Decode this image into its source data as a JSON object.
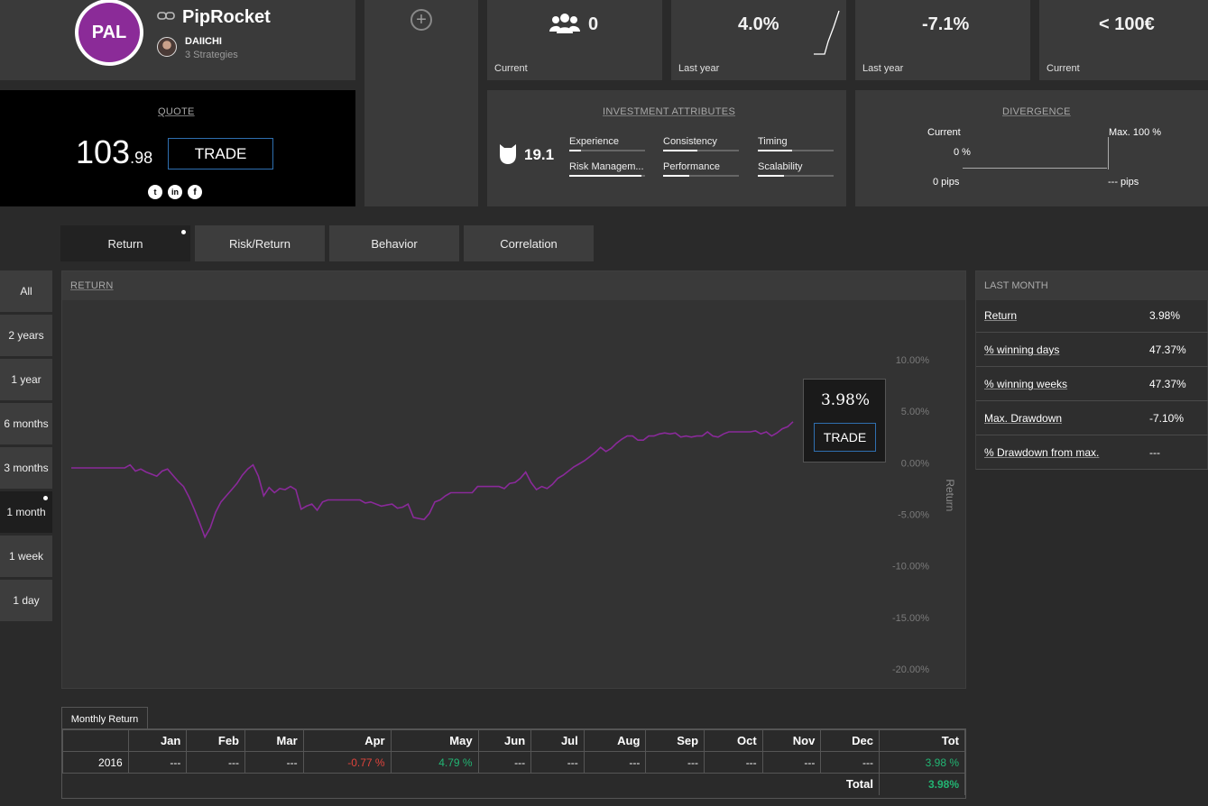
{
  "strategy": {
    "avatar_initials": "PAL",
    "name": "PipRocket",
    "author": "DAIICHI",
    "strategies_count": "3 Strategies"
  },
  "stats": [
    {
      "value": "0",
      "label": "Current",
      "icon": "users-icon"
    },
    {
      "value": "4.0%",
      "label": "Last year"
    },
    {
      "value": "-7.1%",
      "label": "Last year"
    },
    {
      "value": "< 100€",
      "label": "Current"
    }
  ],
  "quote": {
    "caption": "QUOTE",
    "price_int": "103",
    "price_dec": ".98",
    "trade_label": "TRADE",
    "social": [
      "twitter-icon",
      "linkedin-icon",
      "facebook-icon"
    ]
  },
  "investment": {
    "caption": "INVESTMENT ATTRIBUTES",
    "score": "19.1",
    "attributes": [
      {
        "label": "Experience",
        "level": 0.15
      },
      {
        "label": "Consistency",
        "level": 0.45
      },
      {
        "label": "Timing",
        "level": 0.45
      },
      {
        "label": "Risk Managem...",
        "level": 0.95
      },
      {
        "label": "Performance",
        "level": 0.35
      },
      {
        "label": "Scalability",
        "level": 0.35
      }
    ]
  },
  "divergence": {
    "caption": "DIVERGENCE",
    "current_label": "Current",
    "max_label": "Max. 100 %",
    "current_value": "0 %",
    "left_pips": "0 pips",
    "right_pips": "--- pips"
  },
  "tabs": [
    "Return",
    "Risk/Return",
    "Behavior",
    "Correlation"
  ],
  "periods": [
    "All",
    "2 years",
    "1 year",
    "6 months",
    "3 months",
    "1 month",
    "1 week",
    "1 day"
  ],
  "chart_panel": {
    "caption": "RETURN",
    "tooltip_value": "3.98%",
    "tooltip_trade": "TRADE"
  },
  "chart_data": {
    "type": "line",
    "ylabel": "Return",
    "ylim": [
      -20,
      10
    ],
    "yticks": [
      "10.00%",
      "5.00%",
      "0.00%",
      "-5.00%",
      "-10.00%",
      "-15.00%",
      "-20.00%"
    ],
    "tick_values": [
      10,
      5,
      0,
      -5,
      -10,
      -15,
      -20
    ],
    "series": [
      {
        "color": "#8a2a9a",
        "values": [
          -0.5,
          -0.5,
          -0.5,
          -0.5,
          -0.5,
          -0.5,
          -0.5,
          -0.5,
          -0.5,
          -0.5,
          -0.5,
          -0.2,
          -0.8,
          -0.6,
          -0.9,
          -1.1,
          -1.3,
          -0.8,
          -0.6,
          -1.2,
          -1.8,
          -2.3,
          -3.3,
          -4.5,
          -5.8,
          -7.2,
          -6.3,
          -4.8,
          -3.8,
          -3.2,
          -2.6,
          -2.0,
          -1.2,
          -0.6,
          -0.2,
          -1.3,
          -3.2,
          -2.4,
          -2.9,
          -2.5,
          -2.6,
          -2.3,
          -2.6,
          -4.5,
          -4.2,
          -4.0,
          -4.6,
          -3.8,
          -3.6,
          -3.6,
          -3.6,
          -3.6,
          -3.6,
          -3.6,
          -3.6,
          -3.9,
          -3.8,
          -4.0,
          -4.2,
          -4.1,
          -4.0,
          -4.4,
          -4.3,
          -4.0,
          -5.3,
          -5.4,
          -5.5,
          -4.9,
          -3.8,
          -3.6,
          -3.2,
          -2.9,
          -2.9,
          -2.9,
          -2.9,
          -2.9,
          -2.3,
          -2.3,
          -2.3,
          -2.3,
          -2.3,
          -2.5,
          -2.0,
          -1.9,
          -1.5,
          -0.9,
          -1.9,
          -2.6,
          -2.3,
          -2.5,
          -2.1,
          -1.5,
          -1.2,
          -0.8,
          -0.4,
          -0.1,
          0.2,
          0.6,
          1.0,
          1.5,
          1.1,
          1.4,
          1.9,
          2.3,
          2.6,
          2.6,
          2.2,
          2.2,
          2.6,
          2.6,
          2.8,
          2.9,
          2.8,
          2.9,
          2.5,
          2.6,
          2.5,
          2.6,
          2.6,
          3.0,
          2.6,
          2.5,
          2.8,
          3.0,
          3.0,
          3.0,
          3.0,
          3.0,
          3.1,
          2.8,
          3.0,
          2.6,
          2.9,
          3.3,
          3.5,
          3.98
        ]
      }
    ]
  },
  "last_month": {
    "caption": "LAST MONTH",
    "rows": [
      {
        "label": "Return",
        "value": "3.98%"
      },
      {
        "label": "% winning days",
        "value": "47.37%"
      },
      {
        "label": "% winning weeks",
        "value": "47.37%"
      },
      {
        "label": "Max. Drawdown",
        "value": "-7.10%"
      },
      {
        "label": "% Drawdown from max.",
        "value": "---"
      }
    ]
  },
  "monthly": {
    "tab_label": "Monthly Return",
    "headers": [
      "",
      "Jan",
      "Feb",
      "Mar",
      "Apr",
      "May",
      "Jun",
      "Jul",
      "Aug",
      "Sep",
      "Oct",
      "Nov",
      "Dec",
      "Tot"
    ],
    "row": [
      "2016",
      "---",
      "---",
      "---",
      "-0.77 %",
      "4.79 %",
      "---",
      "---",
      "---",
      "---",
      "---",
      "---",
      "---",
      "3.98 %"
    ],
    "total_label": "Total",
    "total_value": "3.98%",
    "neg_color": "#e0443c",
    "pos_color": "#22b573"
  }
}
